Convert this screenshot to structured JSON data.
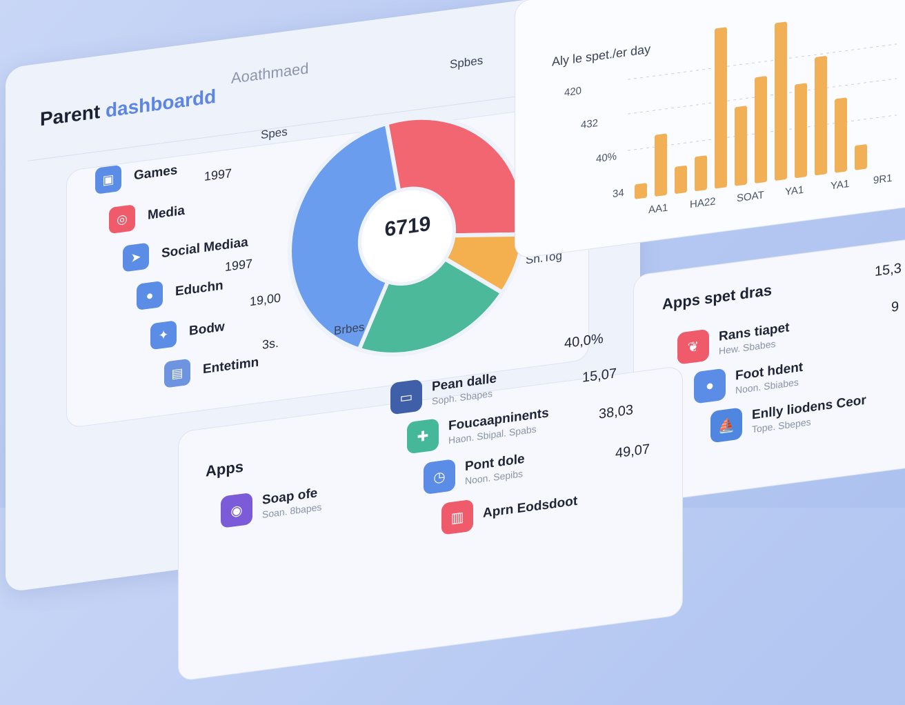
{
  "header": {
    "title_plain": "Parent",
    "title_accent": "dashboard",
    "title_suffix": "d",
    "subtitle": "Aoathmaed"
  },
  "legend": [
    {
      "label": "Games",
      "value": "",
      "icon": "gamepad-icon",
      "color": "#5b8de6"
    },
    {
      "label": "Media",
      "value": "1997",
      "icon": "camera-icon",
      "color": "#ef5b6b"
    },
    {
      "label": "Social Mediaa",
      "value": "",
      "icon": "send-icon",
      "color": "#5b8de6"
    },
    {
      "label": "Educhn",
      "value": "1997",
      "icon": "chat-icon",
      "color": "#5b8de6"
    },
    {
      "label": "Bodw",
      "value": "19,00",
      "icon": "bird-icon",
      "color": "#5b8de6"
    },
    {
      "label": "Entetimn",
      "value": "3s.",
      "icon": "tablet-icon",
      "color": "#6e94df"
    }
  ],
  "pie": {
    "center_value": "6719",
    "labels": {
      "top_right": "Spbes",
      "left": "Spes",
      "bottom": "Brbes",
      "right": "Sh.Tog"
    }
  },
  "chart_data": {
    "type": "bar",
    "title": "Aly le spet./er day",
    "y_ticks": [
      "420",
      "432",
      "40%",
      "34"
    ],
    "x_ticks": [
      "AA1",
      "HA22",
      "SOAT",
      "YA1",
      "YA1",
      "9R1"
    ],
    "values": [
      6,
      25,
      11,
      14,
      65,
      32,
      43,
      64,
      38,
      48,
      30,
      10
    ],
    "color": "#f1b056"
  },
  "apps_spent": {
    "title": "Apps spet dras",
    "values_top": [
      "15,3",
      "9"
    ],
    "items": [
      {
        "name": "Rans tiapet",
        "sub": "Hew. Sbabes",
        "icon": "heart-app-icon",
        "color": "#ef5b6b"
      },
      {
        "name": "Foot hdent",
        "sub": "Noon. Sbiabes",
        "icon": "lemon-app-icon",
        "color": "#5b8de6"
      },
      {
        "name": "Enlly liodens Ceor",
        "sub": "Tope. Sbepes",
        "icon": "boat-app-icon",
        "color": "#4f86e0"
      }
    ]
  },
  "apps": {
    "title": "Apps",
    "first_item": {
      "name": "Soap ofe",
      "sub": "Soan. 8bapes",
      "icon": "camera-app-icon",
      "color": "#7b5bd8"
    },
    "items": [
      {
        "name": "Pean dalle",
        "sub": "Soph. Sbapes",
        "value": "40,0%",
        "icon": "tv-app-icon",
        "color": "#3f5fa8"
      },
      {
        "name": "Foucaapninents",
        "sub": "Haon. Sbipal. Spabs",
        "value": "15,07",
        "icon": "gamepad-app-icon",
        "color": "#45b89a"
      },
      {
        "name": "Pont dole",
        "sub": "Noon. Sepibs",
        "value": "38,03",
        "icon": "clock-app-icon",
        "color": "#5b8de6"
      },
      {
        "name": "Aprn Eodsdoot",
        "sub": "",
        "value": "49,07",
        "icon": "book-app-icon",
        "color": "#ef5b6b"
      }
    ]
  }
}
